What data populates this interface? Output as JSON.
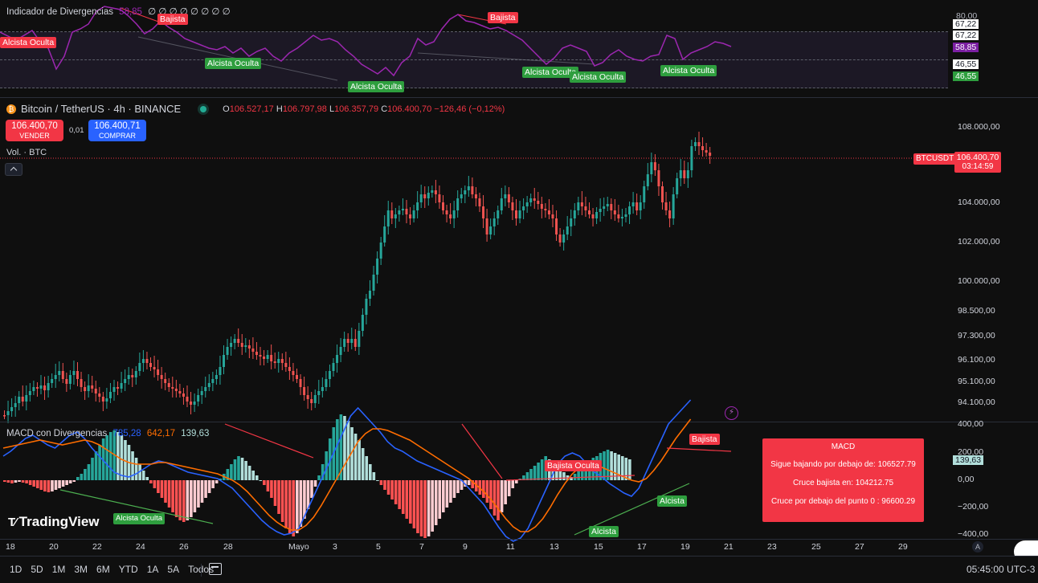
{
  "symbol": {
    "title": "Bitcoin / TetherUS · 4h · BINANCE",
    "ohlc": {
      "o_label": "O",
      "o": "106.527,17",
      "h_label": "H",
      "h": "106.797,98",
      "l_label": "L",
      "l": "106.357,79",
      "c_label": "C",
      "c": "106.400,70",
      "change": "−126,46 (−0,12%)"
    },
    "sell_price": "106.400,70",
    "sell_label": "VENDER",
    "spread": "0,01",
    "buy_price": "106.400,71",
    "buy_label": "COMPRAR",
    "volume_label": "Vol. · BTC",
    "ticker_tag": "BTCUSDT",
    "last_price": "106.400,70",
    "countdown": "03:14:59"
  },
  "rsi_pane": {
    "title": "Indicador de Divergencias",
    "value": "58,85",
    "zeros": "∅ ∅ ∅ ∅ ∅ ∅ ∅ ∅",
    "axis": [
      "80,00",
      "67,22",
      "67,22",
      "58,85",
      "46,55",
      "46,55"
    ],
    "tags": {
      "alcista_oculta": "Alcista Oculta",
      "bajista": "Bajista"
    }
  },
  "price_axis": [
    "108.000,00",
    "104.000,00",
    "102.000,00",
    "100.000,00",
    "98.500,00",
    "97.300,00",
    "96.100,00",
    "95.100,00",
    "94.100,00"
  ],
  "macd_pane": {
    "title": "MACD con Divergencias",
    "v1": "785,28",
    "v2": "642,17",
    "v3": "139,63",
    "axis": [
      "400,00",
      "200,00",
      "0,00",
      "−200,00",
      "−400,00"
    ],
    "value_tag": "139,63",
    "tags": {
      "bajista_oculta": "Bajista Oculta",
      "bajista": "Bajista",
      "alcista": "Alcista",
      "alcista_oculta": "Alcista Oculta"
    },
    "info_box": {
      "title": "MACD",
      "line1": "Sigue bajando por debajo de: 106527.79",
      "line2": "Cruce bajista en: 104212.75",
      "line3": "Cruce por debajo del punto 0 : 96600.29"
    }
  },
  "time_axis": [
    "18",
    "20",
    "22",
    "24",
    "26",
    "28",
    "Mayo",
    "3",
    "5",
    "7",
    "9",
    "11",
    "13",
    "15",
    "17",
    "19",
    "21",
    "23",
    "25",
    "27",
    "29"
  ],
  "timeframes": [
    "1D",
    "5D",
    "1M",
    "3M",
    "6M",
    "YTD",
    "1A",
    "5A",
    "Todos"
  ],
  "clock": "05:45:00 UTC-3",
  "brand": "TradingView",
  "auto_label": "A",
  "colors": {
    "up": "#26a69a",
    "down": "#ef5350",
    "rsi": "#9c27b0",
    "macd": "#2962ff",
    "signal": "#ff6d00",
    "tag_red": "#f23645",
    "tag_green": "#2e9e3e"
  }
}
